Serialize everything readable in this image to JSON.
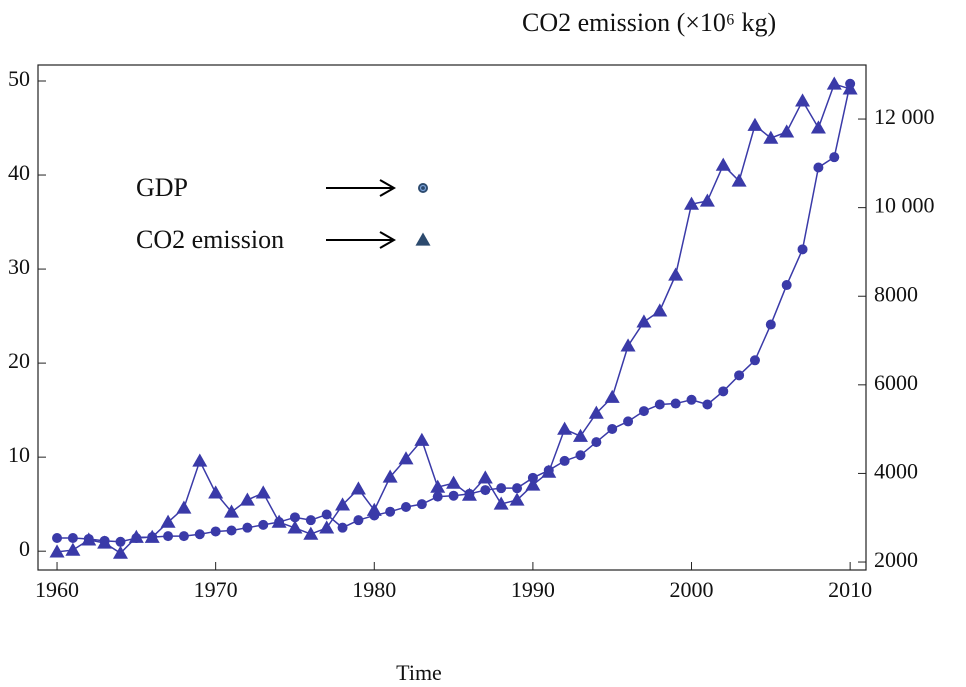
{
  "chart_data": {
    "type": "line",
    "y2label": "CO2 emission (×10⁶ kg)",
    "xlabel": "Time",
    "x": [
      1960,
      1961,
      1962,
      1963,
      1964,
      1965,
      1966,
      1967,
      1968,
      1969,
      1970,
      1971,
      1972,
      1973,
      1974,
      1975,
      1976,
      1977,
      1978,
      1979,
      1980,
      1981,
      1982,
      1983,
      1984,
      1985,
      1986,
      1987,
      1988,
      1989,
      1990,
      1991,
      1992,
      1993,
      1994,
      1995,
      1996,
      1997,
      1998,
      1999,
      2000,
      2001,
      2002,
      2003,
      2004,
      2005,
      2006,
      2007,
      2008,
      2009,
      2010
    ],
    "series": [
      {
        "name": "GDP",
        "color": "#3a3aa8",
        "marker": "circle",
        "values": [
          1.4,
          1.4,
          1.3,
          1.1,
          1.0,
          1.4,
          1.5,
          1.6,
          1.6,
          1.8,
          2.1,
          2.2,
          2.5,
          2.8,
          3.1,
          3.6,
          3.3,
          3.9,
          2.5,
          3.3,
          3.8,
          4.2,
          4.7,
          5.0,
          5.8,
          5.9,
          6.1,
          6.5,
          6.7,
          6.7,
          7.8,
          8.6,
          9.6,
          10.2,
          11.6,
          13.0,
          13.8,
          14.9,
          15.6,
          15.7,
          16.1,
          15.6,
          17.0,
          18.7,
          20.3,
          24.1,
          28.3,
          32.1,
          40.8,
          41.9,
          49.7
        ]
      },
      {
        "name": "CO2 emission",
        "color": "#3a3aa8",
        "marker": "triangle",
        "axis": "y2",
        "values": [
          2230,
          2270,
          2500,
          2430,
          2200,
          2560,
          2560,
          2900,
          3220,
          4280,
          3560,
          3130,
          3400,
          3560,
          2900,
          2770,
          2630,
          2770,
          3290,
          3650,
          3170,
          3920,
          4330,
          4750,
          3690,
          3780,
          3510,
          3900,
          3310,
          3400,
          3740,
          4030,
          5000,
          4840,
          5360,
          5720,
          6880,
          7420,
          7670,
          8480,
          10080,
          10150,
          10960,
          10600,
          11860,
          11570,
          11710,
          12410,
          11800,
          12790,
          12680
        ]
      }
    ],
    "xlim": [
      1958.8,
      2011
    ],
    "xticks": [
      1960,
      1970,
      1980,
      1990,
      2000,
      2010
    ],
    "ylim": [
      -2,
      51.7
    ],
    "yticks": [
      0,
      10,
      20,
      30,
      40,
      50
    ],
    "y2lim": [
      1820,
      13220
    ],
    "y2ticks": [
      2000,
      4000,
      6000,
      8000,
      {
        "value": 10000,
        "label": "10 000"
      },
      {
        "value": 12000,
        "label": "12 000"
      }
    ]
  }
}
